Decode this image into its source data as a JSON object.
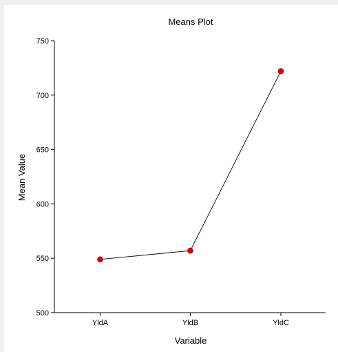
{
  "chart_data": {
    "type": "line",
    "title": "Means Plot",
    "xlabel": "Variable",
    "ylabel": "Mean Value",
    "categories": [
      "YldA",
      "YldB",
      "YldC"
    ],
    "values": [
      549,
      557,
      722
    ],
    "ylim": [
      500,
      750
    ],
    "yticks": [
      500,
      550,
      600,
      650,
      700,
      750
    ],
    "grid": false,
    "legend": "none",
    "colors": {
      "marker": "#e00000",
      "marker_edge": "#a00000",
      "line": "#000000",
      "axis": "#000000"
    }
  }
}
